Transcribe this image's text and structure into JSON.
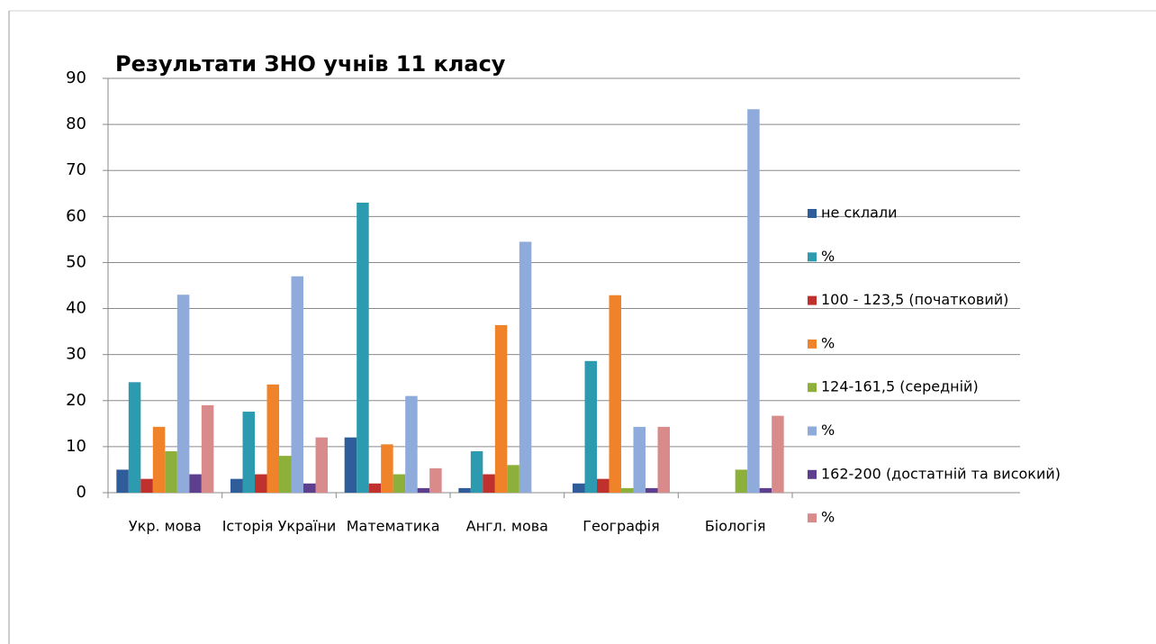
{
  "chart_data": {
    "type": "bar",
    "title": "Результати ЗНО учнів 11 класу",
    "categories": [
      "Укр. мова",
      "Історія України",
      "Математика",
      "Англ. мова",
      "Географія",
      "Біологія"
    ],
    "series": [
      {
        "name": "не склали",
        "color": "#2e5d9a",
        "values": [
          5,
          3,
          12,
          1,
          2,
          0
        ]
      },
      {
        "name": "%",
        "color": "#2c9bb0",
        "values": [
          24,
          17.6,
          63,
          9,
          28.6,
          0
        ]
      },
      {
        "name": "100 - 123,5 (початковий)",
        "color": "#c0302c",
        "values": [
          3,
          4,
          2,
          4,
          3,
          0
        ]
      },
      {
        "name": "%",
        "color": "#f0832a",
        "values": [
          14.3,
          23.5,
          10.5,
          36.4,
          42.9,
          0
        ]
      },
      {
        "name": "124-161,5 (середній)",
        "color": "#8db03a",
        "values": [
          9,
          8,
          4,
          6,
          1,
          5
        ]
      },
      {
        "name": "%",
        "color": "#8eabdc",
        "values": [
          43,
          47,
          21,
          54.5,
          14.3,
          83.3
        ]
      },
      {
        "name": "162-200 (достатній та високий)",
        "color": "#5d3e8f",
        "values": [
          4,
          2,
          1,
          0,
          1,
          1
        ]
      },
      {
        "name": "%",
        "color": "#d98b8b",
        "values": [
          19,
          12,
          5.3,
          0,
          14.3,
          16.7
        ]
      }
    ],
    "ylim": [
      0,
      90
    ],
    "yticks": [
      0,
      10,
      20,
      30,
      40,
      50,
      60,
      70,
      80,
      90
    ],
    "grid": true,
    "legend": "right"
  }
}
